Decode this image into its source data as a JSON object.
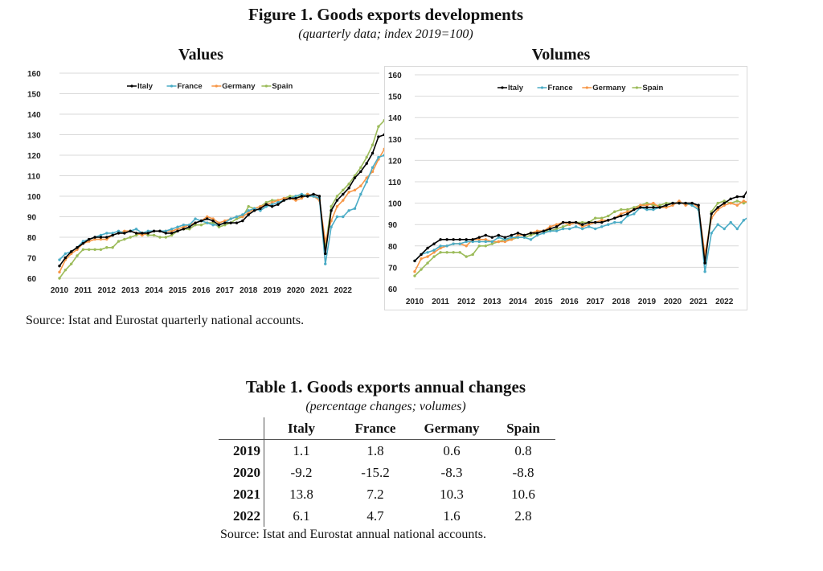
{
  "figure": {
    "title": "Figure 1. Goods exports developments",
    "subtitle": "(quarterly data; index 2019=100)",
    "source": "Source: Istat and Eurostat quarterly national accounts."
  },
  "chart_data": [
    {
      "type": "line",
      "title": "Values",
      "xlabel": "",
      "ylabel": "",
      "ylim": [
        60,
        160
      ],
      "yticks": [
        "60",
        "70",
        "80",
        "90",
        "100",
        "110",
        "120",
        "130",
        "140",
        "150",
        "160"
      ],
      "x_tick_labels": [
        "2010",
        "2011",
        "2012",
        "2013",
        "2014",
        "2015",
        "2016",
        "2017",
        "2018",
        "2019",
        "2020",
        "2021",
        "2022"
      ],
      "x_start": "2010Q1",
      "frequency": "quarterly",
      "grid": true,
      "legend": "top-center",
      "series": [
        {
          "name": "Italy",
          "color": "#000000",
          "values": [
            66,
            70,
            73,
            75,
            77,
            79,
            80,
            80,
            80,
            81,
            82,
            82,
            83,
            82,
            82,
            82,
            83,
            83,
            82,
            82,
            83,
            84,
            85,
            87,
            88,
            89,
            88,
            86,
            87,
            87,
            87,
            88,
            91,
            93,
            94,
            96,
            95,
            96,
            98,
            99,
            99,
            100,
            100,
            101,
            100,
            72,
            93,
            98,
            101,
            104,
            109,
            112,
            116,
            121,
            129,
            130,
            131,
            132
          ]
        },
        {
          "name": "France",
          "color": "#4bacc6",
          "values": [
            69,
            72,
            73,
            75,
            78,
            79,
            80,
            81,
            82,
            82,
            83,
            82,
            83,
            84,
            82,
            83,
            83,
            83,
            83,
            84,
            85,
            86,
            86,
            89,
            88,
            87,
            86,
            86,
            87,
            89,
            90,
            91,
            93,
            94,
            93,
            95,
            96,
            97,
            98,
            99,
            100,
            101,
            100,
            100,
            99,
            67,
            85,
            90,
            90,
            93,
            94,
            101,
            107,
            114,
            119,
            120,
            120
          ]
        },
        {
          "name": "Germany",
          "color": "#f79646",
          "values": [
            63,
            69,
            72,
            74,
            77,
            78,
            79,
            79,
            79,
            81,
            82,
            83,
            83,
            82,
            81,
            82,
            83,
            83,
            83,
            83,
            84,
            85,
            86,
            87,
            88,
            90,
            89,
            87,
            88,
            89,
            90,
            90,
            92,
            94,
            95,
            96,
            97,
            98,
            99,
            99,
            98,
            99,
            101,
            100,
            98,
            78,
            88,
            95,
            98,
            102,
            103,
            105,
            109,
            112,
            118,
            123,
            122,
            121
          ]
        },
        {
          "name": "Spain",
          "color": "#9bbb59",
          "values": [
            60,
            64,
            67,
            71,
            74,
            74,
            74,
            74,
            75,
            75,
            78,
            79,
            80,
            81,
            82,
            81,
            81,
            80,
            80,
            81,
            83,
            84,
            84,
            86,
            86,
            87,
            87,
            85,
            86,
            87,
            89,
            90,
            95,
            94,
            95,
            97,
            98,
            98,
            99,
            100,
            100,
            100,
            101,
            100,
            99,
            75,
            95,
            100,
            103,
            106,
            110,
            114,
            119,
            125,
            134,
            137,
            139
          ]
        }
      ]
    },
    {
      "type": "line",
      "title": "Volumes",
      "xlabel": "",
      "ylabel": "",
      "ylim": [
        60,
        160
      ],
      "yticks": [
        "60",
        "70",
        "80",
        "90",
        "100",
        "110",
        "120",
        "130",
        "140",
        "150",
        "160"
      ],
      "x_tick_labels": [
        "2010",
        "2011",
        "2012",
        "2013",
        "2014",
        "2015",
        "2016",
        "2017",
        "2018",
        "2019",
        "2020",
        "2021",
        "2022"
      ],
      "x_start": "2010Q1",
      "frequency": "quarterly",
      "grid": true,
      "legend": "top-center",
      "series": [
        {
          "name": "Italy",
          "color": "#000000",
          "values": [
            73,
            76,
            79,
            81,
            83,
            83,
            83,
            83,
            83,
            83,
            84,
            85,
            84,
            85,
            84,
            85,
            86,
            85,
            86,
            86,
            87,
            88,
            89,
            91,
            91,
            91,
            90,
            91,
            91,
            91,
            92,
            93,
            94,
            95,
            97,
            98,
            98,
            98,
            98,
            99,
            100,
            100,
            100,
            100,
            99,
            72,
            95,
            98,
            100,
            102,
            103,
            103,
            108,
            109,
            109,
            111
          ]
        },
        {
          "name": "France",
          "color": "#4bacc6",
          "values": [
            73,
            76,
            77,
            78,
            80,
            80,
            81,
            81,
            82,
            82,
            82,
            82,
            82,
            84,
            83,
            84,
            84,
            84,
            83,
            85,
            86,
            87,
            87,
            88,
            88,
            89,
            88,
            89,
            88,
            89,
            90,
            91,
            91,
            94,
            95,
            98,
            97,
            97,
            98,
            99,
            100,
            100,
            100,
            99,
            97,
            68,
            86,
            90,
            88,
            91,
            88,
            92,
            94,
            94,
            95,
            96,
            96
          ]
        },
        {
          "name": "Germany",
          "color": "#f79646",
          "values": [
            68,
            74,
            75,
            77,
            79,
            80,
            81,
            81,
            80,
            83,
            83,
            83,
            82,
            82,
            82,
            83,
            85,
            85,
            86,
            87,
            87,
            89,
            90,
            91,
            90,
            91,
            89,
            90,
            91,
            92,
            92,
            93,
            95,
            96,
            97,
            99,
            99,
            100,
            98,
            98,
            99,
            101,
            99,
            100,
            98,
            76,
            93,
            97,
            99,
            100,
            99,
            101,
            100,
            102,
            103,
            101
          ]
        },
        {
          "name": "Spain",
          "color": "#9bbb59",
          "values": [
            66,
            69,
            72,
            75,
            77,
            77,
            77,
            77,
            75,
            76,
            80,
            80,
            81,
            82,
            83,
            83,
            84,
            84,
            85,
            86,
            87,
            87,
            88,
            89,
            90,
            91,
            91,
            91,
            93,
            93,
            94,
            96,
            97,
            97,
            98,
            99,
            100,
            99,
            99,
            100,
            100,
            100,
            100,
            99,
            97,
            73,
            96,
            100,
            101,
            100,
            101,
            100,
            101,
            103,
            104,
            106
          ]
        }
      ]
    }
  ],
  "table": {
    "title": "Table 1. Goods exports annual changes",
    "subtitle": "(percentage changes; volumes)",
    "columns": [
      "",
      "Italy",
      "France",
      "Germany",
      "Spain"
    ],
    "rows": [
      {
        "year": "2019",
        "values": [
          "1.1",
          "1.8",
          "0.6",
          "0.8"
        ]
      },
      {
        "year": "2020",
        "values": [
          "-9.2",
          "-15.2",
          "-8.3",
          "-8.8"
        ]
      },
      {
        "year": "2021",
        "values": [
          "13.8",
          "7.2",
          "10.3",
          "10.6"
        ]
      },
      {
        "year": "2022",
        "values": [
          "6.1",
          "4.7",
          "1.6",
          "2.8"
        ]
      }
    ],
    "source": "Source: Istat and Eurostat annual national accounts."
  }
}
